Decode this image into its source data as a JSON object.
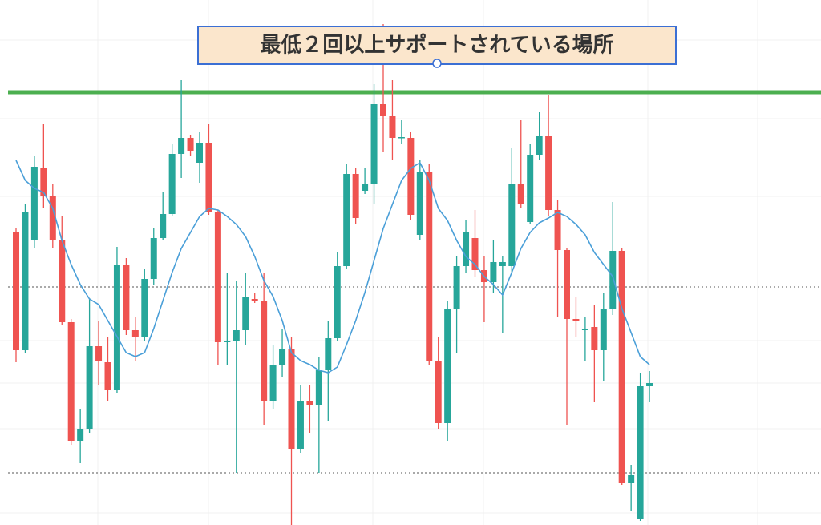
{
  "chart_data": {
    "type": "candlestick",
    "annotation": "最低２回以上サポートされている場所",
    "ylim": [
      0,
      655
    ],
    "up_color": "#26a69a",
    "down_color": "#ef5350",
    "open": [
      365,
      218,
      355,
      445,
      410,
      355,
      253,
      105,
      120,
      223,
      203,
      168,
      325,
      243,
      235,
      307,
      358,
      388,
      463,
      483,
      452,
      477,
      390,
      228,
      230,
      243,
      282,
      280,
      155,
      200,
      220,
      95,
      155,
      150,
      193,
      233,
      323,
      438,
      417,
      425,
      525,
      510,
      483,
      483,
      362,
      440,
      205,
      127,
      270,
      323,
      358,
      318,
      303,
      323,
      323,
      425,
      378,
      462,
      485,
      393,
      343,
      257,
      243,
      247,
      218,
      270,
      342,
      53,
      7,
      173
    ],
    "high": [
      370,
      400,
      460,
      500,
      425,
      385,
      257,
      145,
      283,
      255,
      235,
      347,
      333,
      260,
      320,
      370,
      415,
      475,
      555,
      487,
      490,
      500,
      393,
      315,
      305,
      315,
      290,
      315,
      225,
      245,
      235,
      175,
      175,
      210,
      255,
      340,
      450,
      445,
      445,
      550,
      625,
      555,
      505,
      490,
      455,
      450,
      235,
      280,
      335,
      380,
      393,
      335,
      355,
      335,
      470,
      505,
      475,
      515,
      537,
      405,
      345,
      285,
      260,
      275,
      290,
      403,
      345,
      75,
      190,
      192
    ],
    "low": [
      203,
      215,
      345,
      395,
      345,
      250,
      100,
      77,
      115,
      175,
      155,
      165,
      237,
      205,
      230,
      300,
      355,
      385,
      433,
      460,
      427,
      387,
      200,
      200,
      65,
      225,
      277,
      125,
      145,
      185,
      0,
      90,
      115,
      65,
      130,
      230,
      320,
      375,
      413,
      400,
      465,
      455,
      475,
      380,
      355,
      200,
      120,
      105,
      215,
      315,
      310,
      253,
      290,
      240,
      315,
      395,
      375,
      455,
      385,
      260,
      125,
      235,
      205,
      153,
      180,
      262,
      50,
      17,
      5,
      153
    ],
    "close": [
      218,
      390,
      447,
      410,
      355,
      253,
      105,
      120,
      223,
      205,
      168,
      325,
      243,
      235,
      307,
      358,
      388,
      463,
      483,
      467,
      477,
      390,
      228,
      230,
      243,
      285,
      280,
      155,
      200,
      220,
      95,
      155,
      150,
      193,
      233,
      323,
      438,
      383,
      425,
      525,
      510,
      483,
      484,
      387,
      440,
      205,
      127,
      270,
      323,
      365,
      318,
      303,
      328,
      328,
      425,
      400,
      462,
      485,
      393,
      343,
      257,
      255,
      245,
      218,
      270,
      342,
      53,
      63,
      173,
      177
    ],
    "moving_average": {
      "color": "#4a9fd8",
      "values": [
        455,
        430,
        420,
        415,
        395,
        355,
        325,
        300,
        282,
        275,
        255,
        235,
        215,
        210,
        215,
        245,
        280,
        315,
        345,
        365,
        385,
        395,
        393,
        385,
        375,
        360,
        335,
        305,
        285,
        255,
        215,
        205,
        200,
        193,
        190,
        197,
        225,
        255,
        290,
        330,
        370,
        400,
        430,
        445,
        452,
        430,
        395,
        380,
        355,
        335,
        325,
        310,
        300,
        287,
        315,
        345,
        365,
        377,
        383,
        390,
        385,
        375,
        362,
        340,
        325,
        310,
        270,
        240,
        210,
        200
      ]
    },
    "hlines": [
      {
        "value": 540,
        "color": "#4caf50",
        "style": "solid"
      },
      {
        "value": 297,
        "color": "#777777",
        "style": "dotted"
      },
      {
        "value": 65,
        "color": "#777777",
        "style": "dotted"
      }
    ]
  }
}
